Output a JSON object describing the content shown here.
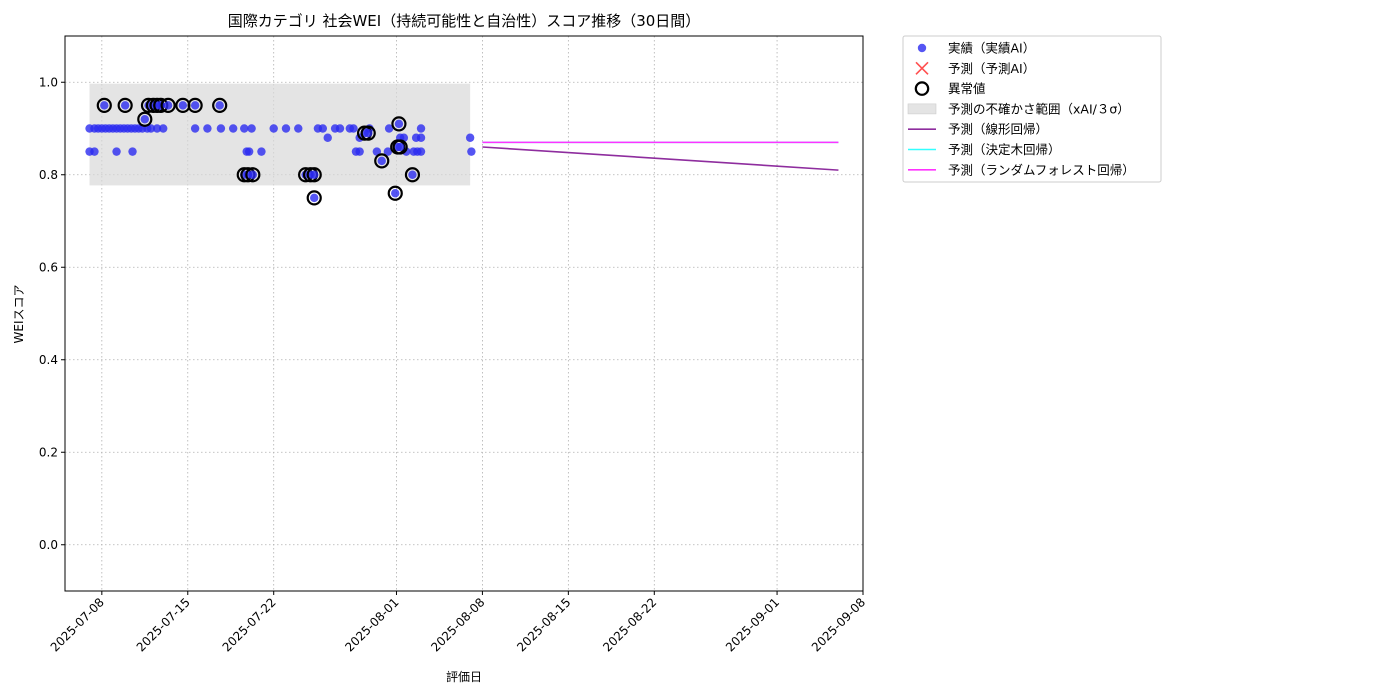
{
  "chart_data": {
    "type": "scatter",
    "title": "国際カテゴリ 社会WEI（持続可能性と自治性）スコア推移（30日間）",
    "xlabel": "評価日",
    "ylabel": "WEIスコア",
    "xlim": [
      "2025-07-05",
      "2025-09-08"
    ],
    "ylim": [
      -0.1,
      1.1
    ],
    "x_ticks": [
      "2025-07-08",
      "2025-07-15",
      "2025-07-22",
      "2025-08-01",
      "2025-08-08",
      "2025-08-15",
      "2025-08-22",
      "2025-09-01",
      "2025-09-08"
    ],
    "y_ticks": [
      0.0,
      0.2,
      0.4,
      0.6,
      0.8,
      1.0
    ],
    "y_tick_labels": [
      "0.0",
      "0.2",
      "0.4",
      "0.6",
      "0.8",
      "1.0"
    ],
    "grid": true,
    "legend_position": "outside-top-right",
    "colors": {
      "actual": "#2b2bf0",
      "predicted": "#ff3030",
      "anomaly": "#000000",
      "band": "#d9d9d9",
      "linear": "#8e2d9e",
      "tree": "#33ffff",
      "forest": "#ff33ff"
    },
    "series": [
      {
        "name": "実績（実績AI）",
        "kind": "scatter",
        "points": [
          [
            "2025-07-07",
            0.9
          ],
          [
            "2025-07-07",
            0.85
          ],
          [
            "2025-07-07.4",
            0.9
          ],
          [
            "2025-07-07.4",
            0.85
          ],
          [
            "2025-07-07.7",
            0.9
          ],
          [
            "2025-07-08",
            0.9
          ],
          [
            "2025-07-08.3",
            0.9
          ],
          [
            "2025-07-08.6",
            0.9
          ],
          [
            "2025-07-08.9",
            0.9
          ],
          [
            "2025-07-09.2",
            0.9
          ],
          [
            "2025-07-09.2",
            0.85
          ],
          [
            "2025-07-09.5",
            0.9
          ],
          [
            "2025-07-09.8",
            0.9
          ],
          [
            "2025-07-10.1",
            0.9
          ],
          [
            "2025-07-10.4",
            0.9
          ],
          [
            "2025-07-10.5",
            0.85
          ],
          [
            "2025-07-10.7",
            0.9
          ],
          [
            "2025-07-11",
            0.9
          ],
          [
            "2025-07-11.3",
            0.9
          ],
          [
            "2025-07-11.7",
            0.9
          ],
          [
            "2025-07-12",
            0.9
          ],
          [
            "2025-07-12.5",
            0.9
          ],
          [
            "2025-07-13",
            0.9
          ],
          [
            "2025-07-15.6",
            0.9
          ],
          [
            "2025-07-16.6",
            0.9
          ],
          [
            "2025-07-17.7",
            0.9
          ],
          [
            "2025-07-18.7",
            0.9
          ],
          [
            "2025-07-19.6",
            0.9
          ],
          [
            "2025-07-19.8",
            0.85
          ],
          [
            "2025-07-20",
            0.85
          ],
          [
            "2025-07-20.2",
            0.9
          ],
          [
            "2025-07-21",
            0.85
          ],
          [
            "2025-07-22",
            0.9
          ],
          [
            "2025-07-23",
            0.9
          ],
          [
            "2025-07-24",
            0.9
          ],
          [
            "2025-07-25.6",
            0.9
          ],
          [
            "2025-07-26",
            0.9
          ],
          [
            "2025-07-26.4",
            0.88
          ],
          [
            "2025-07-27",
            0.9
          ],
          [
            "2025-07-27.4",
            0.9
          ],
          [
            "2025-07-28.2",
            0.9
          ],
          [
            "2025-07-28.5",
            0.9
          ],
          [
            "2025-07-28.7",
            0.85
          ],
          [
            "2025-07-29",
            0.85
          ],
          [
            "2025-07-29",
            0.88
          ],
          [
            "2025-07-29.8",
            0.9
          ],
          [
            "2025-07-30.4",
            0.85
          ],
          [
            "2025-07-31.3",
            0.85
          ],
          [
            "2025-07-31.4",
            0.9
          ],
          [
            "2025-08-01.3",
            0.88
          ],
          [
            "2025-08-01.6",
            0.88
          ],
          [
            "2025-08-01.8",
            0.85
          ],
          [
            "2025-08-02.4",
            0.85
          ],
          [
            "2025-08-02.6",
            0.88
          ],
          [
            "2025-08-02.7",
            0.85
          ],
          [
            "2025-08-03",
            0.9
          ],
          [
            "2025-08-03",
            0.85
          ],
          [
            "2025-08-03",
            0.88
          ],
          [
            "2025-08-07",
            0.88
          ],
          [
            "2025-08-07.1",
            0.85
          ]
        ]
      },
      {
        "name": "異常値",
        "kind": "anomaly",
        "points": [
          [
            "2025-07-08.2",
            0.95
          ],
          [
            "2025-07-09.9",
            0.95
          ],
          [
            "2025-07-11.5",
            0.92
          ],
          [
            "2025-07-11.8",
            0.95
          ],
          [
            "2025-07-12.2",
            0.95
          ],
          [
            "2025-07-12.5",
            0.95
          ],
          [
            "2025-07-12.8",
            0.95
          ],
          [
            "2025-07-13.4",
            0.95
          ],
          [
            "2025-07-14.6",
            0.95
          ],
          [
            "2025-07-15.6",
            0.95
          ],
          [
            "2025-07-17.6",
            0.95
          ],
          [
            "2025-07-19.6",
            0.8
          ],
          [
            "2025-07-19.9",
            0.8
          ],
          [
            "2025-07-20.3",
            0.8
          ],
          [
            "2025-07-24.6",
            0.8
          ],
          [
            "2025-07-25",
            0.8
          ],
          [
            "2025-07-25.3",
            0.75
          ],
          [
            "2025-07-25.3",
            0.8
          ],
          [
            "2025-07-29.4",
            0.89
          ],
          [
            "2025-07-29.7",
            0.89
          ],
          [
            "2025-07-30.8",
            0.83
          ],
          [
            "2025-07-31.9",
            0.76
          ],
          [
            "2025-08-01.1",
            0.86
          ],
          [
            "2025-08-01.2",
            0.91
          ],
          [
            "2025-08-01.3",
            0.86
          ],
          [
            "2025-08-02.3",
            0.8
          ]
        ]
      },
      {
        "name": "予測の不確かさ範囲（xAI/３σ）",
        "kind": "band",
        "x_range": [
          "2025-07-07",
          "2025-08-07"
        ],
        "y_range": [
          0.777,
          0.997
        ]
      },
      {
        "name": "予測（線形回帰）",
        "kind": "line",
        "points": [
          [
            "2025-08-08",
            0.86
          ],
          [
            "2025-09-06",
            0.81
          ]
        ]
      },
      {
        "name": "予測（決定木回帰）",
        "kind": "line",
        "points": [
          [
            "2025-08-08",
            0.87
          ],
          [
            "2025-09-06",
            0.87
          ]
        ]
      },
      {
        "name": "予測（ランダムフォレスト回帰）",
        "kind": "line",
        "points": [
          [
            "2025-08-08",
            0.87
          ],
          [
            "2025-09-06",
            0.87
          ]
        ]
      }
    ],
    "legend": [
      {
        "label": "実績（実績AI）",
        "marker": "dot"
      },
      {
        "label": "予測（予測AI）",
        "marker": "x"
      },
      {
        "label": "異常値",
        "marker": "ring"
      },
      {
        "label": "予測の不確かさ範囲（xAI/３σ）",
        "marker": "patch"
      },
      {
        "label": "予測（線形回帰）",
        "marker": "line-linear"
      },
      {
        "label": "予測（決定木回帰）",
        "marker": "line-tree"
      },
      {
        "label": "予測（ランダムフォレスト回帰）",
        "marker": "line-forest"
      }
    ]
  }
}
